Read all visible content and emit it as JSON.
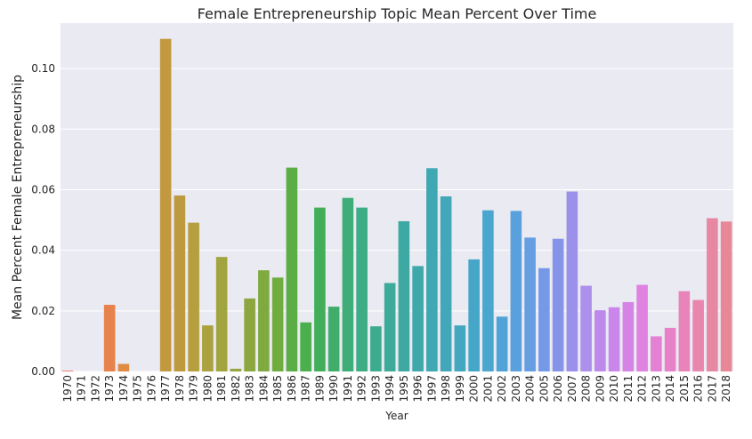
{
  "chart_data": {
    "type": "bar",
    "title": "Female Entrepreneurship Topic Mean Percent Over Time",
    "xlabel": "Year",
    "ylabel": "Mean Percent Female Entrepreneurship",
    "ylim": [
      0,
      0.115
    ],
    "yticks": [
      "0.00",
      "0.02",
      "0.04",
      "0.06",
      "0.08",
      "0.10"
    ],
    "grid": true,
    "categories": [
      "1970",
      "1971",
      "1972",
      "1973",
      "1974",
      "1975",
      "1976",
      "1977",
      "1978",
      "1979",
      "1980",
      "1981",
      "1982",
      "1983",
      "1984",
      "1985",
      "1986",
      "1987",
      "1989",
      "1990",
      "1991",
      "1992",
      "1993",
      "1994",
      "1995",
      "1996",
      "1997",
      "1998",
      "1999",
      "2000",
      "2001",
      "2002",
      "2003",
      "2004",
      "2005",
      "2006",
      "2007",
      "2008",
      "2009",
      "2010",
      "2011",
      "2012",
      "2013",
      "2014",
      "2015",
      "2016",
      "2017",
      "2018"
    ],
    "values": [
      0.0003,
      0,
      0,
      0.022,
      0.0025,
      0,
      0,
      0.1098,
      0.0581,
      0.0491,
      0.0152,
      0.0378,
      0.0009,
      0.0241,
      0.0334,
      0.031,
      0.0673,
      0.0162,
      0.0541,
      0.0214,
      0.0573,
      0.0541,
      0.0149,
      0.0292,
      0.0496,
      0.0348,
      0.0671,
      0.0578,
      0.0152,
      0.037,
      0.0532,
      0.0181,
      0.053,
      0.0442,
      0.0341,
      0.0438,
      0.0594,
      0.0283,
      0.0202,
      0.0212,
      0.0229,
      0.0286,
      0.0116,
      0.0144,
      0.0265,
      0.0236,
      0.0506,
      0.0495
    ],
    "colors": [
      "#e8857a",
      "#e88670",
      "#e98a60",
      "#e8824d",
      "#e08c44",
      "#d4953f",
      "#c8993f",
      "#c39940",
      "#be9a3f",
      "#b59f3f",
      "#aaa13f",
      "#a1a43f",
      "#98a53f",
      "#8ca73f",
      "#7faa3f",
      "#6fad3f",
      "#5aae45",
      "#4aaf4c",
      "#43ae5a",
      "#40ae6a",
      "#3fad78",
      "#3eac85",
      "#3dab90",
      "#3eaa9a",
      "#3ea9a3",
      "#3fa8ab",
      "#40a8b2",
      "#42a7b9",
      "#43a7c0",
      "#46a6c7",
      "#4aa5cf",
      "#4fa3d6",
      "#59a1dc",
      "#669ee2",
      "#7599e6",
      "#8594e8",
      "#9b91ea",
      "#ad8fec",
      "#bd8aec",
      "#ca86ea",
      "#d584e6",
      "#df82e0",
      "#e581d4",
      "#e882c8",
      "#e984bb",
      "#e886ae",
      "#e887a1",
      "#e88796"
    ]
  }
}
